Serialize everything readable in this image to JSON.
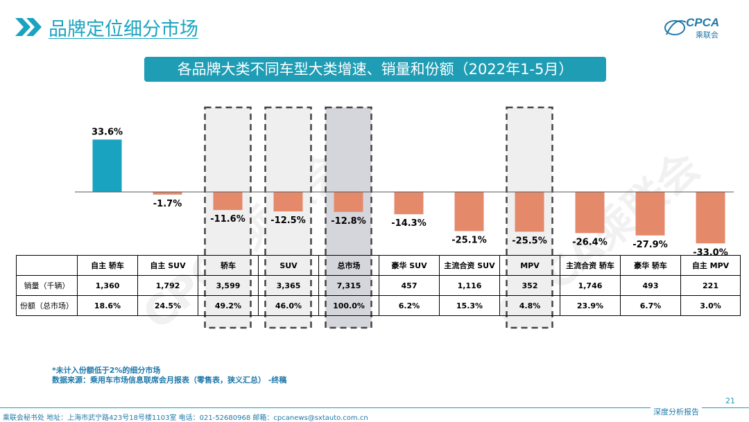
{
  "header": {
    "title": "品牌定位细分市场"
  },
  "logo": {
    "text": "CPCA",
    "sub": "乘联会"
  },
  "subtitle": "各品牌大类不同车型大类增速、销量和份额（2022年1-5月）",
  "colors": {
    "positive": "#1aa3c0",
    "negative": "#e5896b",
    "accent": "#1f9db5"
  },
  "chart_data": {
    "type": "bar",
    "categories": [
      "自主 轿车",
      "自主 SUV",
      "轿车",
      "SUV",
      "总市场",
      "豪华 SUV",
      "主流合资 SUV",
      "MPV",
      "主流合资 轿车",
      "豪华 轿车",
      "自主 MPV"
    ],
    "values": [
      33.6,
      -1.7,
      -11.6,
      -12.5,
      -12.8,
      -14.3,
      -25.1,
      -25.5,
      -26.4,
      -27.9,
      -33.0
    ],
    "value_labels": [
      "33.6%",
      "-1.7%",
      "-11.6%",
      "-12.5%",
      "-12.8%",
      "-14.3%",
      "-25.1%",
      "-25.5%",
      "-26.4%",
      "-27.9%",
      "-33.0%"
    ],
    "highlighted": [
      2,
      3,
      4,
      7
    ],
    "emphasized": [
      4
    ]
  },
  "table": {
    "rows": [
      {
        "label": "销量（千辆）",
        "values": [
          "1,360",
          "1,792",
          "3,599",
          "3,365",
          "7,315",
          "457",
          "1,116",
          "352",
          "1,746",
          "493",
          "221"
        ]
      },
      {
        "label": "份额（总市场）",
        "values": [
          "18.6%",
          "24.5%",
          "49.2%",
          "46.0%",
          "100.0%",
          "6.2%",
          "15.3%",
          "4.8%",
          "23.9%",
          "6.7%",
          "3.0%"
        ]
      }
    ]
  },
  "footnote": {
    "line1": "*未计入份额低于2%的细分市场",
    "line2": "数据来源：乘用车市场信息联席会月报表（零售表，狭义汇总） -终稿"
  },
  "footer": {
    "address": "乘联会秘书处   地址：上海市武宁路423号18号楼1103室  电话：021-52680968   邮箱：cpcanews@sxtauto.com.cn",
    "tag": "深度分析报告",
    "page": "21"
  },
  "watermark": "CPCA乘联会"
}
